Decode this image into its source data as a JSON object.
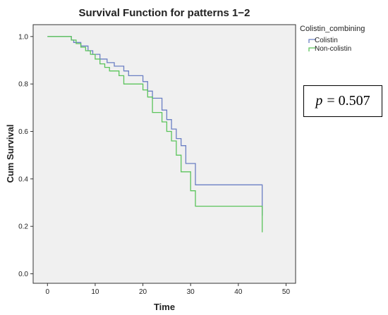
{
  "chart_data": {
    "type": "line",
    "step": true,
    "title": "Survival Function for patterns 1−2",
    "xlabel": "Time",
    "ylabel": "Cum Survival",
    "xlim": [
      -3,
      52
    ],
    "ylim": [
      -0.04,
      1.05
    ],
    "x_ticks": [
      0,
      10,
      20,
      30,
      40,
      50
    ],
    "x_tick_labels": [
      "0",
      "10",
      "20",
      "30",
      "40",
      "50"
    ],
    "y_ticks": [
      0.0,
      0.2,
      0.4,
      0.6,
      0.8,
      1.0
    ],
    "y_tick_labels": [
      "0.0",
      "0.2",
      "0.4",
      "0.6",
      "0.8",
      "1.0"
    ],
    "grid": false,
    "legend_title": "Colistin_combining",
    "legend_position": "top-right outside plot",
    "background_color": "#f0f0f0",
    "series": [
      {
        "name": "Colistin",
        "color": "#6b7fc4",
        "x": [
          0,
          5,
          5.5,
          7,
          8.5,
          9.5,
          11,
          12.5,
          14,
          16,
          17,
          20,
          21,
          22,
          24,
          25,
          26,
          27,
          28,
          29,
          31,
          45,
          45
        ],
        "y": [
          1.0,
          0.985,
          0.975,
          0.96,
          0.94,
          0.925,
          0.905,
          0.89,
          0.875,
          0.855,
          0.835,
          0.81,
          0.77,
          0.74,
          0.69,
          0.65,
          0.61,
          0.57,
          0.54,
          0.465,
          0.375,
          0.375,
          0.245
        ]
      },
      {
        "name": "Non-colistin",
        "color": "#5bc45b",
        "x": [
          0,
          5,
          6,
          7,
          8,
          9,
          10,
          11,
          12,
          13,
          15,
          16,
          20,
          21,
          22,
          24,
          25,
          26,
          27,
          28,
          30,
          31,
          45,
          45
        ],
        "y": [
          1.0,
          0.985,
          0.97,
          0.955,
          0.94,
          0.925,
          0.905,
          0.885,
          0.87,
          0.855,
          0.835,
          0.8,
          0.775,
          0.745,
          0.68,
          0.64,
          0.6,
          0.56,
          0.5,
          0.43,
          0.35,
          0.285,
          0.285,
          0.175
        ]
      }
    ]
  },
  "annotation": {
    "p_symbol": "p",
    "p_text": "= 0.507"
  }
}
